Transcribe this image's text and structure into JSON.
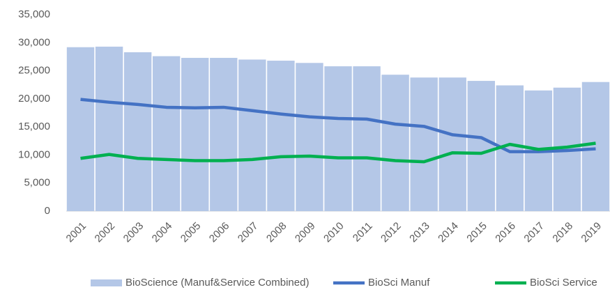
{
  "chart_data": {
    "type": "bar",
    "categories": [
      "2001",
      "2002",
      "2003",
      "2004",
      "2005",
      "2006",
      "2007",
      "2008",
      "2009",
      "2010",
      "2011",
      "2012",
      "2013",
      "2014",
      "2015",
      "2016",
      "2017",
      "2018",
      "2019"
    ],
    "series": [
      {
        "name": "BioScience (Manuf&Service Combined)",
        "type": "bar",
        "color": "#b4c7e7",
        "values": [
          29200,
          29300,
          28300,
          27600,
          27300,
          27300,
          27000,
          26800,
          26400,
          25800,
          25800,
          24300,
          23800,
          23800,
          23200,
          22400,
          21500,
          22000,
          23000
        ]
      },
      {
        "name": "BioSci Manuf",
        "type": "line",
        "color": "#4472c4",
        "values": [
          19900,
          19400,
          19000,
          18500,
          18400,
          18500,
          17900,
          17300,
          16800,
          16500,
          16400,
          15500,
          15100,
          13600,
          13100,
          10600,
          10600,
          10800,
          11100
        ]
      },
      {
        "name": "BioSci Service",
        "type": "line",
        "color": "#00b050",
        "values": [
          9400,
          10100,
          9400,
          9200,
          9000,
          9000,
          9200,
          9700,
          9800,
          9500,
          9500,
          9000,
          8800,
          10400,
          10300,
          11900,
          11000,
          11400,
          12100
        ]
      }
    ],
    "ylim": [
      0,
      35000
    ],
    "yticks": [
      0,
      {
        "value": 5000,
        "label": "5,000"
      },
      {
        "value": 10000,
        "label": "10,000"
      },
      {
        "value": 15000,
        "label": "15,000"
      },
      {
        "value": 20000,
        "label": "20,000"
      },
      {
        "value": 25000,
        "label": "25,000"
      },
      {
        "value": 30000,
        "label": "30,000"
      },
      {
        "value": 35000,
        "label": "35,000"
      }
    ],
    "legend": "bottom"
  }
}
